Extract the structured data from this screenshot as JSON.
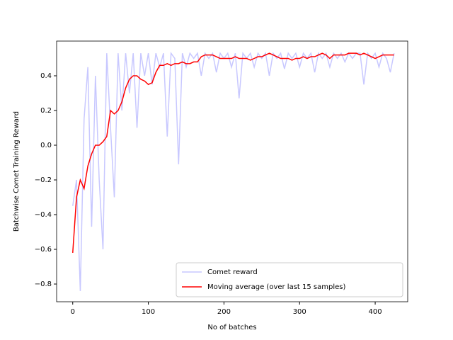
{
  "chart_data": {
    "type": "line",
    "xlabel": "No of batches",
    "ylabel": "Batchwise Comet Training Reward",
    "x": [
      0,
      5,
      10,
      15,
      20,
      25,
      30,
      35,
      40,
      45,
      50,
      55,
      60,
      65,
      70,
      75,
      80,
      85,
      90,
      95,
      100,
      105,
      110,
      115,
      120,
      125,
      130,
      135,
      140,
      145,
      150,
      155,
      160,
      165,
      170,
      175,
      180,
      185,
      190,
      195,
      200,
      205,
      210,
      215,
      220,
      225,
      230,
      235,
      240,
      245,
      250,
      255,
      260,
      265,
      270,
      275,
      280,
      285,
      290,
      295,
      300,
      305,
      310,
      315,
      320,
      325,
      330,
      335,
      340,
      345,
      350,
      355,
      360,
      365,
      370,
      375,
      380,
      385,
      390,
      395,
      400,
      405,
      410,
      415,
      420,
      425
    ],
    "series": [
      {
        "name": "Comet reward",
        "color": "#c8c8ff",
        "values": [
          -0.35,
          -0.2,
          -0.84,
          0.15,
          0.45,
          -0.47,
          0.4,
          -0.2,
          -0.6,
          0.53,
          0.1,
          -0.3,
          0.53,
          0.2,
          0.53,
          0.3,
          0.53,
          0.1,
          0.53,
          0.4,
          0.53,
          0.35,
          0.53,
          0.45,
          0.53,
          0.05,
          0.53,
          0.5,
          -0.11,
          0.53,
          0.45,
          0.53,
          0.5,
          0.53,
          0.4,
          0.53,
          0.5,
          0.53,
          0.42,
          0.53,
          0.5,
          0.53,
          0.45,
          0.53,
          0.27,
          0.53,
          0.5,
          0.53,
          0.45,
          0.53,
          0.5,
          0.53,
          0.4,
          0.53,
          0.5,
          0.53,
          0.44,
          0.53,
          0.5,
          0.53,
          0.45,
          0.53,
          0.5,
          0.53,
          0.42,
          0.53,
          0.5,
          0.53,
          0.45,
          0.53,
          0.5,
          0.53,
          0.48,
          0.53,
          0.5,
          0.53,
          0.53,
          0.35,
          0.53,
          0.5,
          0.53,
          0.45,
          0.53,
          0.5,
          0.42,
          0.53
        ]
      },
      {
        "name": "Moving average (over last 15 samples)",
        "color": "#ff0000",
        "values": [
          -0.62,
          -0.3,
          -0.2,
          -0.25,
          -0.12,
          -0.05,
          0.0,
          0.0,
          0.02,
          0.05,
          0.2,
          0.18,
          0.2,
          0.25,
          0.33,
          0.38,
          0.4,
          0.4,
          0.38,
          0.37,
          0.35,
          0.36,
          0.42,
          0.46,
          0.46,
          0.47,
          0.46,
          0.47,
          0.47,
          0.48,
          0.47,
          0.47,
          0.48,
          0.48,
          0.51,
          0.52,
          0.52,
          0.52,
          0.51,
          0.5,
          0.5,
          0.5,
          0.5,
          0.51,
          0.5,
          0.5,
          0.5,
          0.49,
          0.5,
          0.51,
          0.51,
          0.52,
          0.53,
          0.52,
          0.51,
          0.5,
          0.5,
          0.5,
          0.49,
          0.5,
          0.5,
          0.51,
          0.5,
          0.51,
          0.51,
          0.52,
          0.53,
          0.52,
          0.5,
          0.52,
          0.52,
          0.52,
          0.52,
          0.53,
          0.53,
          0.53,
          0.52,
          0.53,
          0.52,
          0.51,
          0.5,
          0.51,
          0.52,
          0.52,
          0.52,
          0.52
        ]
      }
    ],
    "xlim": [
      -21.3,
      443
    ],
    "ylim": [
      -0.902,
      0.6
    ],
    "xticks": [
      0,
      100,
      200,
      300,
      400
    ],
    "yticks": [
      {
        "value": -0.8,
        "label": "−0.8"
      },
      {
        "value": -0.6,
        "label": "−0.6"
      },
      {
        "value": -0.4,
        "label": "−0.4"
      },
      {
        "value": -0.2,
        "label": "−0.2"
      },
      {
        "value": 0,
        "label": "0.0"
      },
      0.2,
      0.4
    ],
    "legend": "lower right"
  }
}
